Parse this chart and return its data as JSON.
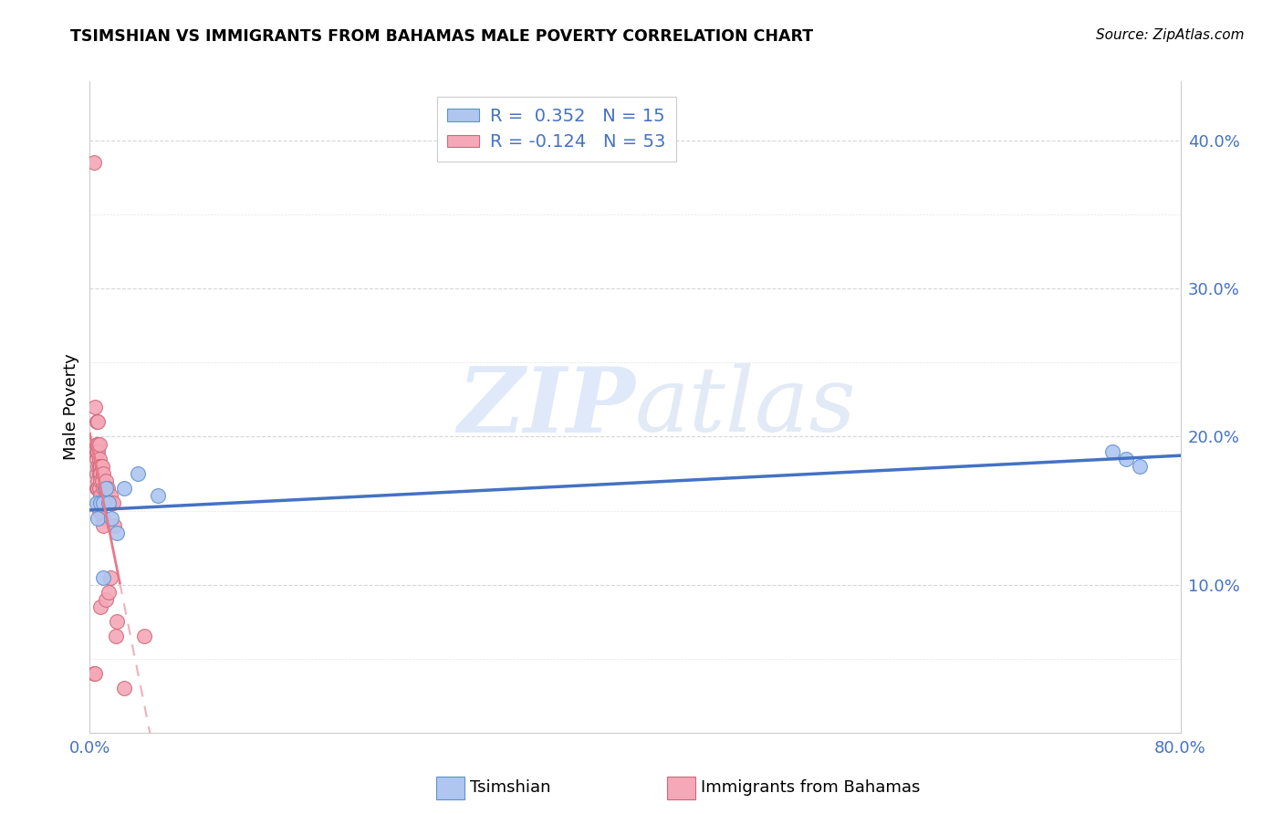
{
  "title": "TSIMSHIAN VS IMMIGRANTS FROM BAHAMAS MALE POVERTY CORRELATION CHART",
  "source": "Source: ZipAtlas.com",
  "ylabel_label": "Male Poverty",
  "xlim": [
    0.0,
    0.8
  ],
  "ylim": [
    0.0,
    0.44
  ],
  "legend_entry1": "R =  0.352   N = 15",
  "legend_entry2": "R = -0.124   N = 53",
  "tsimshian_x": [
    0.005,
    0.006,
    0.008,
    0.01,
    0.01,
    0.012,
    0.014,
    0.016,
    0.02,
    0.025,
    0.035,
    0.05,
    0.75,
    0.76,
    0.77
  ],
  "tsimshian_y": [
    0.155,
    0.145,
    0.155,
    0.155,
    0.105,
    0.165,
    0.155,
    0.145,
    0.135,
    0.165,
    0.175,
    0.16,
    0.19,
    0.185,
    0.18
  ],
  "bahamas_x": [
    0.003,
    0.003,
    0.004,
    0.004,
    0.004,
    0.005,
    0.005,
    0.005,
    0.005,
    0.005,
    0.005,
    0.006,
    0.006,
    0.006,
    0.006,
    0.006,
    0.006,
    0.007,
    0.007,
    0.007,
    0.007,
    0.007,
    0.007,
    0.007,
    0.008,
    0.008,
    0.008,
    0.008,
    0.008,
    0.009,
    0.009,
    0.009,
    0.01,
    0.01,
    0.01,
    0.01,
    0.01,
    0.011,
    0.011,
    0.012,
    0.012,
    0.013,
    0.014,
    0.014,
    0.015,
    0.015,
    0.016,
    0.017,
    0.018,
    0.019,
    0.02,
    0.025,
    0.04
  ],
  "bahamas_y": [
    0.385,
    0.04,
    0.22,
    0.19,
    0.04,
    0.21,
    0.195,
    0.19,
    0.185,
    0.175,
    0.165,
    0.21,
    0.195,
    0.19,
    0.18,
    0.17,
    0.165,
    0.195,
    0.185,
    0.18,
    0.175,
    0.165,
    0.155,
    0.15,
    0.18,
    0.175,
    0.17,
    0.16,
    0.085,
    0.18,
    0.17,
    0.155,
    0.175,
    0.165,
    0.155,
    0.145,
    0.14,
    0.165,
    0.155,
    0.17,
    0.09,
    0.165,
    0.155,
    0.095,
    0.16,
    0.105,
    0.155,
    0.155,
    0.14,
    0.065,
    0.075,
    0.03,
    0.065
  ],
  "watermark_zip": "ZIP",
  "watermark_atlas": "atlas",
  "blue_line_color": "#4472c4",
  "pink_line_color": "#e8788a",
  "pink_dash_color": "#f0b0bc",
  "dot_blue_fill": "#aec6f0",
  "dot_pink_fill": "#f4a8b8",
  "dot_blue_edge": "#6090cc",
  "dot_pink_edge": "#d06878",
  "background_color": "#ffffff",
  "grid_color": "#cccccc",
  "tick_color": "#4472c4",
  "axis_color": "#cccccc"
}
